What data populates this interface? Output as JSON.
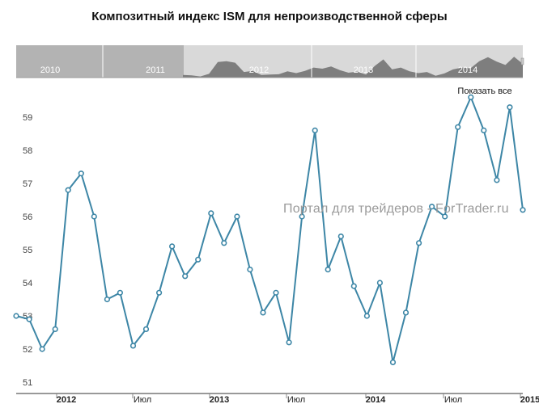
{
  "chart_data": {
    "type": "line",
    "title": "Композитный индекс ISM для непроизводственной сферы",
    "xlabel": "",
    "ylabel": "",
    "ylim": [
      50.6,
      60.3
    ],
    "grid": false,
    "x_tick_labels": [
      "2012",
      "Июл",
      "2013",
      "Июл",
      "2014",
      "Июл",
      "2015"
    ],
    "y_tick_labels": [
      "51",
      "52",
      "53",
      "54",
      "55",
      "56",
      "57",
      "58",
      "59"
    ],
    "y_ticks": [
      51,
      52,
      53,
      54,
      55,
      56,
      57,
      58,
      59
    ],
    "series": [
      {
        "values": [
          53.0,
          52.9,
          52.0,
          52.6,
          56.8,
          57.3,
          56.0,
          53.5,
          53.7,
          52.1,
          52.6,
          53.7,
          55.1,
          54.2,
          54.7,
          56.1,
          55.2,
          56.0,
          54.4,
          53.1,
          53.7,
          52.2,
          56.0,
          58.6,
          54.4,
          55.4,
          53.9,
          53.0,
          54.0,
          51.6,
          53.1,
          55.2,
          56.3,
          56.0,
          58.7,
          59.6,
          58.6,
          57.1,
          59.3,
          56.2
        ],
        "color": "#3d86a6"
      }
    ],
    "navigator": {
      "labels": [
        "2010",
        "2011",
        "2012",
        "2013",
        "2014"
      ],
      "selected_label_index": 2,
      "values": [
        50.5,
        50.4,
        50.1,
        50.8,
        54.0,
        54.2,
        53.8,
        51.3,
        51.6,
        50.5,
        50.6,
        50.7,
        51.5,
        51.0,
        51.6,
        52.5,
        52.2,
        52.8,
        51.8,
        51.1,
        51.4,
        50.6,
        52.9,
        54.7,
        52.0,
        52.5,
        51.5,
        51.0,
        51.3,
        50.3,
        50.9,
        52.0,
        52.5,
        52.3,
        54.2,
        55.3,
        54.1,
        53.2,
        55.4,
        53.5
      ]
    }
  },
  "reset_zoom_label": "Показать все",
  "watermark": "Портал для трейдеров - ForTrader.ru",
  "colors": {
    "line": "#3d86a6",
    "marker_fill": "#ffffff",
    "nav_bg": "#d9d9d9",
    "nav_unselected": "#b3b3b3",
    "nav_area": "#7e7e7e",
    "axis": "#333333"
  }
}
